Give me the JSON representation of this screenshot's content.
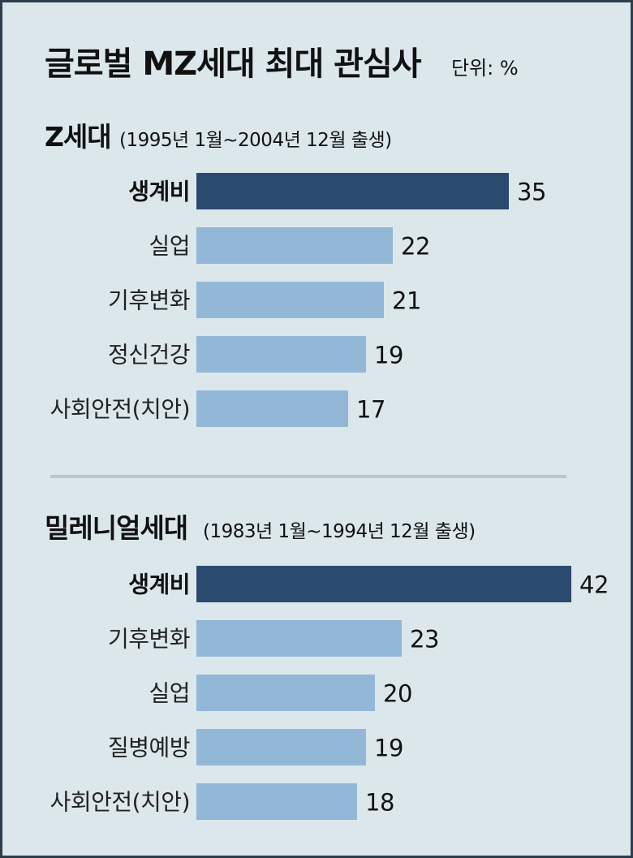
{
  "title": "글로벌 MZ세대 최대 관심사",
  "unit": "단위: %",
  "colors": {
    "top_bar": "#2b4a70",
    "bar": "#93b7d6",
    "divider": "#b4c9d2"
  },
  "chart_data": [
    {
      "type": "bar",
      "orientation": "horizontal",
      "name": "Z세대",
      "subtitle": "(1995년 1월~2004년 12월 출생)",
      "categories": [
        "생계비",
        "실업",
        "기후변화",
        "정신건강",
        "사회안전(치안)"
      ],
      "values": [
        35,
        22,
        21,
        19,
        17
      ],
      "unit": "%"
    },
    {
      "type": "bar",
      "orientation": "horizontal",
      "name": "밀레니얼세대",
      "subtitle": "(1983년 1월~1994년 12월 출생)",
      "categories": [
        "생계비",
        "기후변화",
        "실업",
        "질병예방",
        "사회안전(치안)"
      ],
      "values": [
        42,
        23,
        20,
        19,
        18
      ],
      "unit": "%"
    }
  ]
}
